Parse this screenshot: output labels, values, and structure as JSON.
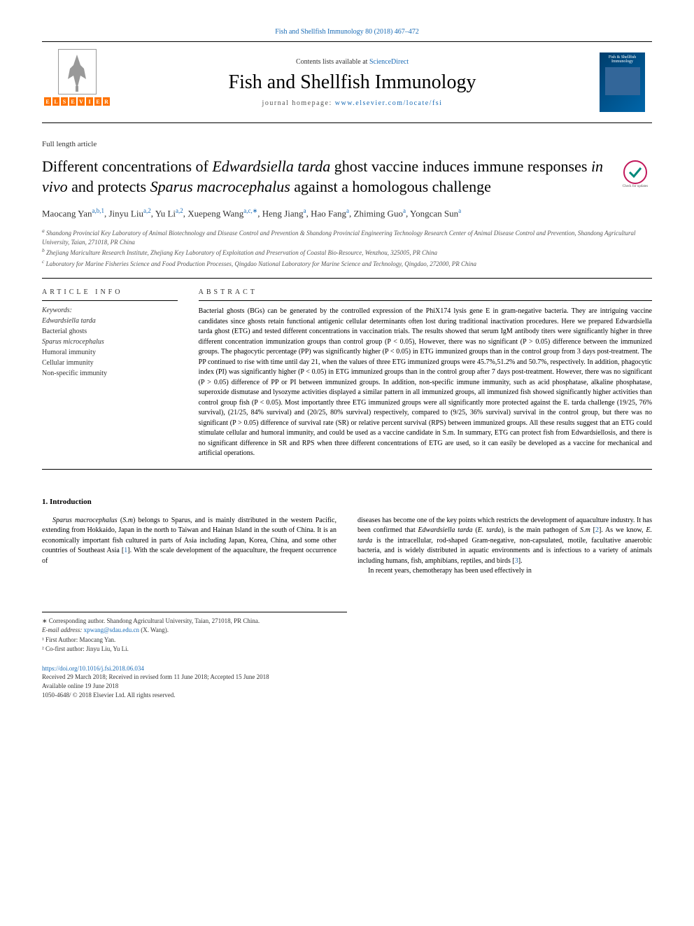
{
  "header_link": "Fish and Shellfish Immunology 80 (2018) 467–472",
  "contents_text": "Contents lists available at ",
  "contents_link": "ScienceDirect",
  "journal_title": "Fish and Shellfish Immunology",
  "homepage_text": "journal homepage: ",
  "homepage_link": "www.elsevier.com/locate/fsi",
  "cover_text_1": "Fish & Shellfish",
  "cover_text_2": "Immunology",
  "article_type": "Full length article",
  "title_part_1": "Different concentrations of ",
  "title_italic_1": "Edwardsiella tarda",
  "title_part_2": " ghost vaccine induces immune responses ",
  "title_italic_2": "in vivo",
  "title_part_3": " and protects ",
  "title_italic_3": "Sparus macrocephalus",
  "title_part_4": " against a homologous challenge",
  "check_updates_text": "Check for updates",
  "authors": [
    {
      "name": "Maocang Yan",
      "sup": "a,b,1"
    },
    {
      "name": "Jinyu Liu",
      "sup": "a,2"
    },
    {
      "name": "Yu Li",
      "sup": "a,2"
    },
    {
      "name": "Xuepeng Wang",
      "sup": "a,c,∗"
    },
    {
      "name": "Heng Jiang",
      "sup": "a"
    },
    {
      "name": "Hao Fang",
      "sup": "a"
    },
    {
      "name": "Zhiming Guo",
      "sup": "a"
    },
    {
      "name": "Yongcan Sun",
      "sup": "a"
    }
  ],
  "affiliations": [
    {
      "sup": "a",
      "text": "Shandong Provincial Key Laboratory of Animal Biotechnology and Disease Control and Prevention & Shandong Provincial Engineering Technology Research Center of Animal Disease Control and Prevention, Shandong Agricultural University, Taian, 271018, PR China"
    },
    {
      "sup": "b",
      "text": "Zhejiang Mariculture Research Institute, Zhejiang Key Laboratory of Exploitation and Preservation of Coastal Bio-Resource, Wenzhou, 325005, PR China"
    },
    {
      "sup": "c",
      "text": "Laboratory for Marine Fisheries Science and Food Production Processes, Qingdao National Laboratory for Marine Science and Technology, Qingdao, 272000, PR China"
    }
  ],
  "article_info_heading": "ARTICLE INFO",
  "keywords_label": "Keywords:",
  "keywords": [
    {
      "text": "Edwardsiella tarda",
      "italic": true
    },
    {
      "text": "Bacterial ghosts",
      "italic": false
    },
    {
      "text": "Sparus microcephalus",
      "italic": true
    },
    {
      "text": "Humoral immunity",
      "italic": false
    },
    {
      "text": "Cellular immunity",
      "italic": false
    },
    {
      "text": "Non-specific immunity",
      "italic": false
    }
  ],
  "abstract_heading": "ABSTRACT",
  "abstract_text": "Bacterial ghosts (BGs) can be generated by the controlled expression of the PhiX174 lysis gene E in gram-negative bacteria. They are intriguing vaccine candidates since ghosts retain functional antigenic cellular determinants often lost during traditional inactivation procedures. Here we prepared Edwardsiella tarda ghost (ETG) and tested different concentrations in vaccination trials. The results showed that serum IgM antibody titers were significantly higher in three different concentration immunization groups than control group (P < 0.05), However, there was no significant (P > 0.05) difference between the immunized groups. The phagocytic percentage (PP) was significantly higher (P < 0.05) in ETG immunized groups than in the control group from 3 days post-treatment. The PP continued to rise with time until day 21, when the values of three ETG immunized groups were 45.7%,51.2% and 50.7%, respectively. In addition, phagocytic index (PI) was significantly higher (P < 0.05) in ETG immunized groups than in the control group after 7 days post-treatment. However, there was no significant (P > 0.05) difference of PP or PI between immunized groups. In addition, non-specific immune immunity, such as acid phosphatase, alkaline phosphatase, superoxide dismutase and lysozyme activities displayed a similar pattern in all immunized groups, all immunized fish showed significantly higher activities than control group fish (P < 0.05). Most importantly three ETG immunized groups were all significantly more protected against the E. tarda challenge (19/25, 76% survival), (21/25, 84% survival) and (20/25, 80% survival) respectively, compared to (9/25, 36% survival) survival in the control group, but there was no significant (P > 0.05) difference of survival rate (SR) or relative percent survival (RPS) between immunized groups. All these results suggest that an ETG could stimulate cellular and humoral immunity, and could be used as a vaccine candidate in S.m. In summary, ETG can protect fish from Edwardsiellosis, and there is no significant difference in SR and RPS when three different concentrations of ETG are used, so it can easily be developed as a vaccine for mechanical and artificial operations.",
  "intro_heading": "1. Introduction",
  "intro_col1": "Sparus macrocephalus (S.m) belongs to Sparus, and is mainly distributed in the western Pacific, extending from Hokkaido, Japan in the north to Taiwan and Hainan Island in the south of China. It is an economically important fish cultured in parts of Asia including Japan, Korea, China, and some other countries of Southeast Asia [1]. With the scale development of the aquaculture, the frequent occurrence of",
  "intro_col2_p1": "diseases has become one of the key points which restricts the development of aquaculture industry. It has been confirmed that Edwardsiella tarda (E. tarda), is the main pathogen of S.m [2]. As we know, E. tarda is the intracellular, rod-shaped Gram-negative, non-capsulated, motile, facultative anaerobic bacteria, and is widely distributed in aquatic environments and is infectious to a variety of animals including humans, fish, amphibians, reptiles, and birds [3].",
  "intro_col2_p2": "In recent years, chemotherapy has been used effectively in",
  "footnotes": {
    "corresponding": "∗ Corresponding author. Shandong Agricultural University, Taian, 271018, PR China.",
    "email_label": "E-mail address: ",
    "email": "xpwang@sdau.edu.cn",
    "email_who": " (X. Wang).",
    "first": "¹ First Author: Maocang Yan.",
    "cofirst": "² Co-first author: Jinyu Liu, Yu Li."
  },
  "doi": {
    "url": "https://doi.org/10.1016/j.fsi.2018.06.034",
    "received": "Received 29 March 2018; Received in revised form 11 June 2018; Accepted 15 June 2018",
    "online": "Available online 19 June 2018",
    "copyright": "1050-4648/ © 2018 Elsevier Ltd. All rights reserved."
  },
  "colors": {
    "link": "#1a6bb5",
    "elsevier_orange": "#ff7300",
    "cover_bg": "#003d6b"
  }
}
